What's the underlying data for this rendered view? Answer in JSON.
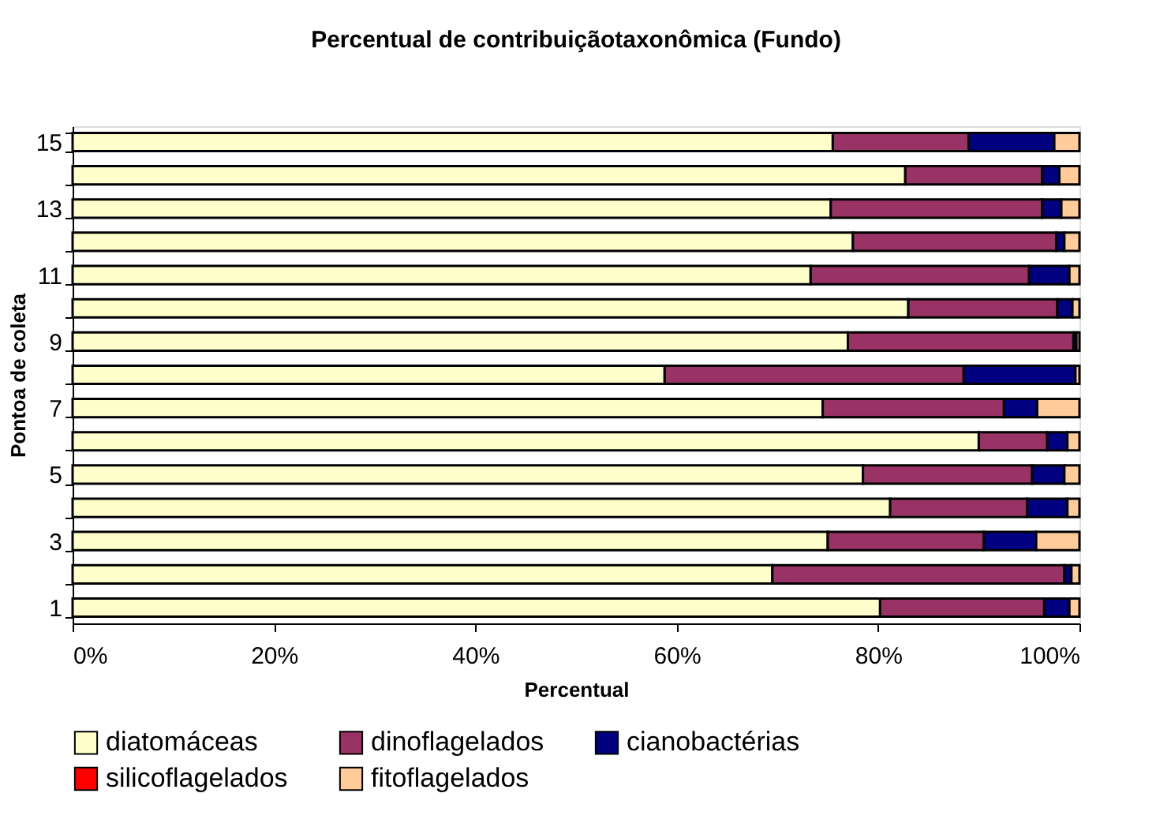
{
  "chart_data": {
    "type": "bar",
    "orientation": "horizontal",
    "stacked": true,
    "title": "Percentual de contribuiçãotaxonômica (Fundo)",
    "xlabel": "Percentual",
    "ylabel": "Pontoa de coleta",
    "categories": [
      "15",
      null,
      "13",
      null,
      "11",
      null,
      "9",
      null,
      "7",
      null,
      "5",
      null,
      "3",
      null,
      "1"
    ],
    "series": [
      {
        "name": "diatomáceas",
        "color": "#ffffcc",
        "values": [
          75.5,
          82.7,
          75.3,
          77.5,
          73.3,
          83,
          77,
          58.8,
          74.5,
          90,
          78.5,
          81.2,
          75,
          69.5,
          80.2
        ]
      },
      {
        "name": "dinoflagelados",
        "color": "#993366",
        "values": [
          13.5,
          13.6,
          21,
          20.2,
          21.7,
          14.8,
          22.4,
          29.7,
          18,
          6.8,
          16.8,
          13.6,
          15.5,
          29,
          16.3
        ]
      },
      {
        "name": "cianobactérias",
        "color": "#000080",
        "values": [
          8.5,
          1.7,
          1.9,
          0.8,
          4,
          1.5,
          0.3,
          11.1,
          3.3,
          2,
          3.2,
          4,
          5.2,
          0.7,
          2.5
        ]
      },
      {
        "name": "silicoflagelados",
        "color": "#ff0000",
        "values": [
          0,
          0,
          0,
          0,
          0,
          0,
          0,
          0,
          0,
          0,
          0,
          0,
          0,
          0,
          0
        ]
      },
      {
        "name": "fitoflagelados",
        "color": "#ffcc99",
        "values": [
          2.5,
          2,
          1.8,
          1.5,
          1,
          0.7,
          0.3,
          0.4,
          4.2,
          1.2,
          1.5,
          1.2,
          4.3,
          0.8,
          1
        ]
      }
    ],
    "xlim": [
      0,
      100
    ],
    "xticks": [
      {
        "value": 0,
        "label": "0%"
      },
      {
        "value": 20,
        "label": "20%"
      },
      {
        "value": 40,
        "label": "40%"
      },
      {
        "value": 60,
        "label": "60%"
      },
      {
        "value": 80,
        "label": "80%"
      },
      {
        "value": 100,
        "label": "100%"
      }
    ],
    "grid": false,
    "legend": "bottom"
  }
}
